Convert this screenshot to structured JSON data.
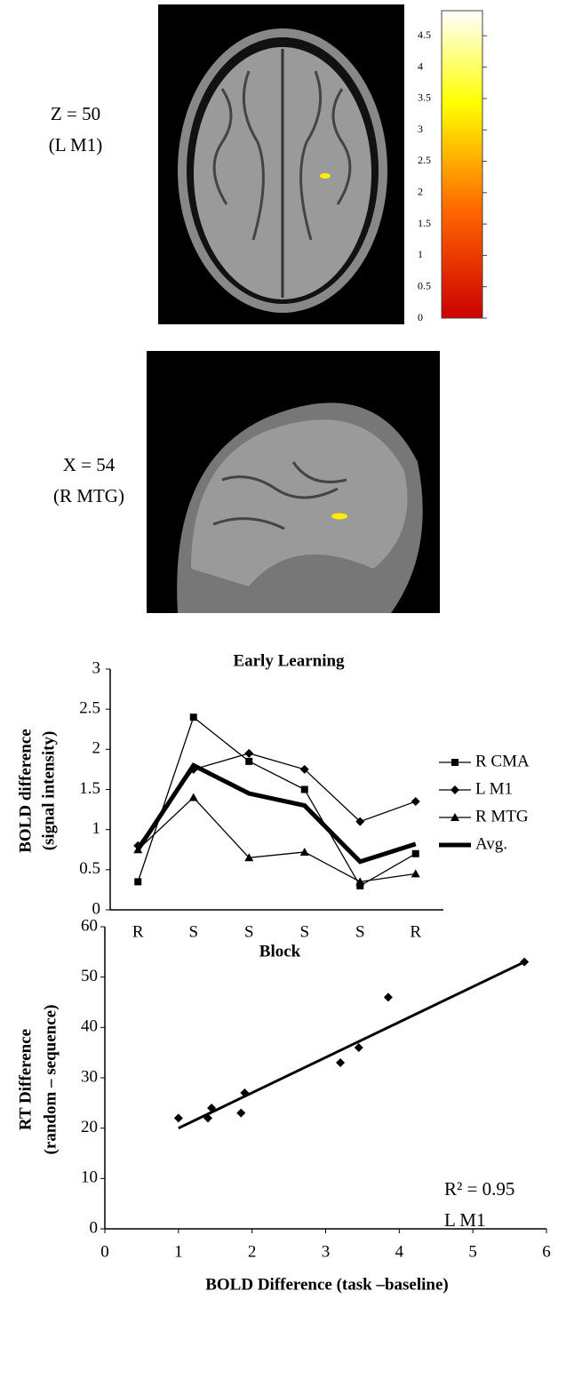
{
  "panels": [
    {
      "label_lines": [
        "Z = 50",
        "(L M1)"
      ]
    },
    {
      "label_lines": [
        "X = 54",
        "(R MTG)"
      ]
    }
  ],
  "colorbar": {
    "lim": [
      0,
      4.9
    ],
    "ticks": [
      0,
      0.5,
      1,
      1.5,
      2,
      2.5,
      3,
      3.5,
      4,
      4.5
    ]
  },
  "chart_data": [
    {
      "type": "line",
      "title": "Early Learning",
      "ylabel_lines": [
        "BOLD difference",
        "(signal intensity)"
      ],
      "xlabel": "Block",
      "categories": [
        "R",
        "S",
        "S",
        "S",
        "S",
        "R"
      ],
      "ylim": [
        0,
        3
      ],
      "yticks": [
        0,
        0.5,
        1,
        1.5,
        2,
        2.5,
        3
      ],
      "series": [
        {
          "name": "R CMA",
          "color": "#000000",
          "marker": "square",
          "width": 1.3,
          "values": [
            0.35,
            2.4,
            1.85,
            1.5,
            0.3,
            0.7
          ]
        },
        {
          "name": "L M1",
          "color": "#000000",
          "marker": "diamond",
          "width": 1.3,
          "values": [
            0.8,
            1.75,
            1.95,
            1.75,
            1.1,
            1.35
          ]
        },
        {
          "name": "R MTG",
          "color": "#000000",
          "marker": "triangle",
          "width": 1.3,
          "values": [
            0.75,
            1.4,
            0.65,
            0.72,
            0.35,
            0.45
          ]
        },
        {
          "name": "Avg.",
          "color": "#000000",
          "marker": "none",
          "width": 5,
          "values": [
            0.75,
            1.8,
            1.45,
            1.3,
            0.6,
            0.82
          ]
        }
      ]
    },
    {
      "type": "scatter",
      "ylabel_lines": [
        "RT Difference",
        "(random – sequence)"
      ],
      "xlabel": "BOLD Difference (task –baseline)",
      "annotations": [
        "R² = 0.95",
        "L M1"
      ],
      "xlim": [
        0,
        6
      ],
      "xticks": [
        0,
        1,
        2,
        3,
        4,
        5,
        6
      ],
      "ylim": [
        0,
        60
      ],
      "yticks": [
        0,
        10,
        20,
        30,
        40,
        50,
        60
      ],
      "color": "#000000",
      "x": [
        1,
        1.4,
        1.45,
        1.85,
        1.9,
        3.2,
        3.45,
        3.85,
        5.7
      ],
      "y": [
        22,
        22,
        24,
        23,
        27,
        33,
        36,
        46,
        53
      ],
      "trendline": {
        "x": [
          1,
          5.7
        ],
        "y": [
          20,
          53
        ]
      }
    }
  ]
}
